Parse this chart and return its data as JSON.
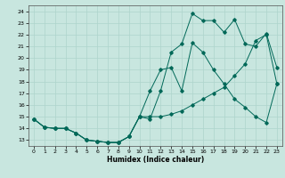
{
  "xlabel": "Humidex (Indice chaleur)",
  "bg_color": "#c8e6df",
  "grid_color": "#aed4cc",
  "line_color": "#006858",
  "xlim": [
    -0.5,
    23.5
  ],
  "ylim": [
    12.5,
    24.5
  ],
  "yticks": [
    13,
    14,
    15,
    16,
    17,
    18,
    19,
    20,
    21,
    22,
    23,
    24
  ],
  "xticks": [
    0,
    1,
    2,
    3,
    4,
    5,
    6,
    7,
    8,
    9,
    10,
    11,
    12,
    13,
    14,
    15,
    16,
    17,
    18,
    19,
    20,
    21,
    22,
    23
  ],
  "line1_x": [
    0,
    1,
    2,
    3,
    4,
    5,
    6,
    7,
    8,
    9,
    10,
    11,
    12,
    13,
    14,
    15,
    16,
    17,
    18,
    19,
    20,
    21,
    22,
    23
  ],
  "line1_y": [
    14.8,
    14.1,
    14.0,
    14.0,
    13.6,
    13.0,
    12.9,
    12.8,
    12.8,
    13.3,
    15.0,
    15.0,
    15.0,
    15.2,
    15.5,
    16.0,
    16.5,
    17.0,
    17.5,
    18.5,
    19.5,
    21.5,
    22.0,
    17.8
  ],
  "line2_x": [
    0,
    1,
    2,
    3,
    4,
    5,
    6,
    7,
    8,
    9,
    10,
    11,
    12,
    13,
    14,
    15,
    16,
    17,
    18,
    19,
    20,
    21,
    22,
    23
  ],
  "line2_y": [
    14.8,
    14.1,
    14.0,
    14.0,
    13.6,
    13.0,
    12.9,
    12.8,
    12.8,
    13.3,
    15.0,
    17.2,
    19.0,
    19.2,
    17.2,
    21.3,
    20.5,
    19.0,
    17.8,
    16.5,
    15.8,
    15.0,
    14.5,
    17.8
  ],
  "line3_x": [
    0,
    1,
    2,
    3,
    4,
    5,
    6,
    7,
    8,
    9,
    10,
    11,
    12,
    13,
    14,
    15,
    16,
    17,
    18,
    19,
    20,
    21,
    22,
    23
  ],
  "line3_y": [
    14.8,
    14.1,
    14.0,
    14.0,
    13.6,
    13.0,
    12.9,
    12.8,
    12.8,
    13.3,
    15.0,
    14.8,
    17.2,
    20.5,
    21.2,
    23.8,
    23.2,
    23.2,
    22.2,
    23.3,
    21.2,
    21.0,
    22.1,
    19.2
  ]
}
